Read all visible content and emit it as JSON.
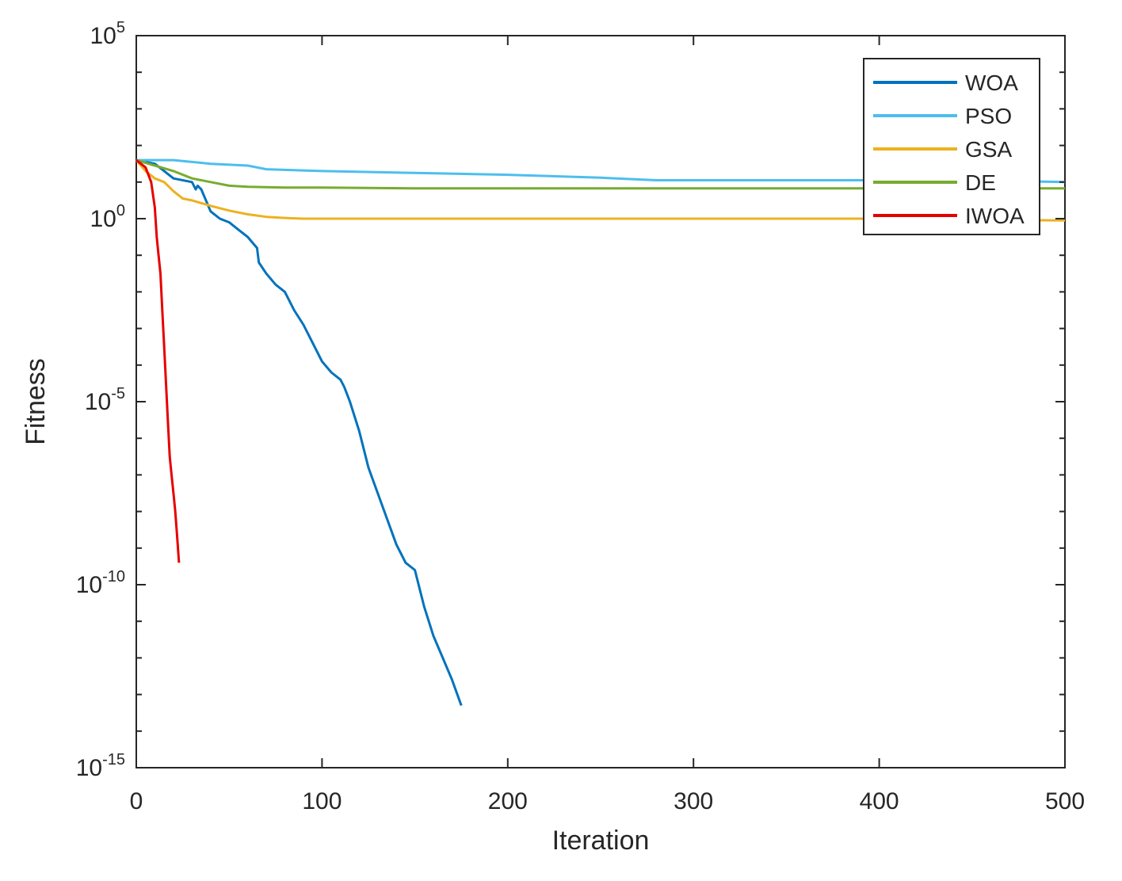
{
  "chart_data": {
    "type": "line",
    "xlabel": "Iteration",
    "ylabel": "Fitness",
    "xlim": [
      0,
      500
    ],
    "ylim_log10": [
      -15,
      5
    ],
    "y_scale": "log",
    "x_ticks": [
      0,
      100,
      200,
      300,
      400,
      500
    ],
    "x_tick_labels": [
      "0",
      "100",
      "200",
      "300",
      "400",
      "500"
    ],
    "y_ticks_log10": [
      -15,
      -10,
      -5,
      0,
      5
    ],
    "y_tick_labels": [
      {
        "base": "10",
        "exp": "-15"
      },
      {
        "base": "10",
        "exp": "-10"
      },
      {
        "base": "10",
        "exp": "-5"
      },
      {
        "base": "10",
        "exp": "0"
      },
      {
        "base": "10",
        "exp": "5"
      }
    ],
    "grid": false,
    "legend_position": "top-right",
    "series": [
      {
        "name": "WOA",
        "color": "#0072BD",
        "x": [
          0,
          10,
          15,
          20,
          30,
          32,
          33,
          35,
          40,
          45,
          50,
          55,
          60,
          65,
          66,
          70,
          75,
          80,
          85,
          90,
          95,
          100,
          105,
          110,
          112,
          115,
          120,
          125,
          130,
          135,
          140,
          145,
          150,
          155,
          160,
          165,
          170,
          175
        ],
        "y_log10": [
          1.6,
          1.5,
          1.3,
          1.1,
          1.0,
          0.8,
          0.9,
          0.8,
          0.2,
          0.0,
          -0.1,
          -0.3,
          -0.5,
          -0.8,
          -1.2,
          -1.5,
          -1.8,
          -2.0,
          -2.5,
          -2.9,
          -3.4,
          -3.9,
          -4.2,
          -4.4,
          -4.6,
          -5.0,
          -5.8,
          -6.8,
          -7.5,
          -8.2,
          -8.9,
          -9.4,
          -9.6,
          -10.6,
          -11.4,
          -12.0,
          -12.6,
          -13.3
        ]
      },
      {
        "name": "PSO",
        "color": "#4DBEEE",
        "x": [
          0,
          20,
          40,
          60,
          70,
          100,
          150,
          200,
          250,
          280,
          350,
          400,
          450,
          500
        ],
        "y_log10": [
          1.6,
          1.6,
          1.5,
          1.45,
          1.35,
          1.3,
          1.25,
          1.2,
          1.12,
          1.05,
          1.05,
          1.05,
          1.05,
          1.0
        ]
      },
      {
        "name": "GSA",
        "color": "#EDB120",
        "x": [
          0,
          5,
          10,
          15,
          20,
          25,
          30,
          40,
          50,
          60,
          70,
          80,
          90,
          100,
          150,
          200,
          300,
          400,
          500
        ],
        "y_log10": [
          1.6,
          1.3,
          1.1,
          1.0,
          0.75,
          0.55,
          0.5,
          0.35,
          0.22,
          0.12,
          0.05,
          0.02,
          0.0,
          0.0,
          0.0,
          0.0,
          0.0,
          0.0,
          -0.05
        ]
      },
      {
        "name": "DE",
        "color": "#77AC30",
        "x": [
          0,
          10,
          20,
          30,
          40,
          50,
          60,
          70,
          80,
          100,
          150,
          200,
          300,
          400,
          500
        ],
        "y_log10": [
          1.6,
          1.45,
          1.3,
          1.1,
          1.0,
          0.9,
          0.87,
          0.86,
          0.85,
          0.85,
          0.83,
          0.83,
          0.83,
          0.83,
          0.83
        ]
      },
      {
        "name": "IWOA",
        "color": "#E60000",
        "x": [
          0,
          5,
          8,
          10,
          11,
          12,
          13,
          14,
          15,
          16,
          17,
          18,
          19,
          20,
          21,
          22,
          23
        ],
        "y_log10": [
          1.6,
          1.4,
          1.0,
          0.3,
          -0.5,
          -1.0,
          -1.5,
          -2.5,
          -3.5,
          -4.5,
          -5.5,
          -6.5,
          -7.0,
          -7.5,
          -8.0,
          -8.7,
          -9.4
        ]
      }
    ]
  }
}
